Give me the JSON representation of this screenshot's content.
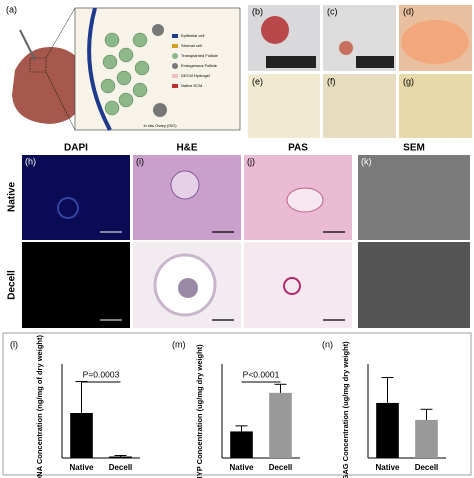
{
  "panel_labels": [
    "(a)",
    "(b)",
    "(c)",
    "(d)",
    "(e)",
    "(f)",
    "(g)",
    "(h)",
    "(i)",
    "(j)",
    "(k)",
    "(l)",
    "(m)",
    "(n)"
  ],
  "diagram": {
    "legend": [
      "Epithelial cell",
      "Stromal cell",
      "Transplanted Follicle",
      "Endogenous Follicle",
      "DECM Hydrogel",
      "Native ECM"
    ],
    "caption": "In situ Ovary (ISO)"
  },
  "column_headers": [
    "DAPI",
    "H&E",
    "PAS",
    "SEM"
  ],
  "row_labels": [
    "Native",
    "Decell"
  ],
  "chart_data": [
    {
      "type": "bar",
      "ylabel": "dsDNA Concentration (ng/mg of dry weight)",
      "categories": [
        "Native",
        "Decell"
      ],
      "values": [
        9,
        0.3
      ],
      "errors": [
        6.3,
        0.2
      ],
      "colors": [
        "#000000",
        "#000000"
      ],
      "ylim": [
        0,
        18
      ],
      "annotation": "P=0.0003"
    },
    {
      "type": "bar",
      "ylabel": "HYP Concentration (ug/mg dry weight)",
      "categories": [
        "Native",
        "Decell"
      ],
      "values": [
        62,
        152
      ],
      "errors": [
        13,
        20
      ],
      "colors": [
        "#000000",
        "#999999"
      ],
      "ylim": [
        0,
        210
      ],
      "annotation": "P<0.0001"
    },
    {
      "type": "bar",
      "ylabel": "sGAG Concentration (ug/mg dry weight)",
      "categories": [
        "Native",
        "Decell"
      ],
      "values": [
        5.2,
        3.6
      ],
      "errors": [
        2.4,
        1.0
      ],
      "colors": [
        "#000000",
        "#999999"
      ],
      "ylim": [
        0,
        8.5
      ]
    }
  ]
}
